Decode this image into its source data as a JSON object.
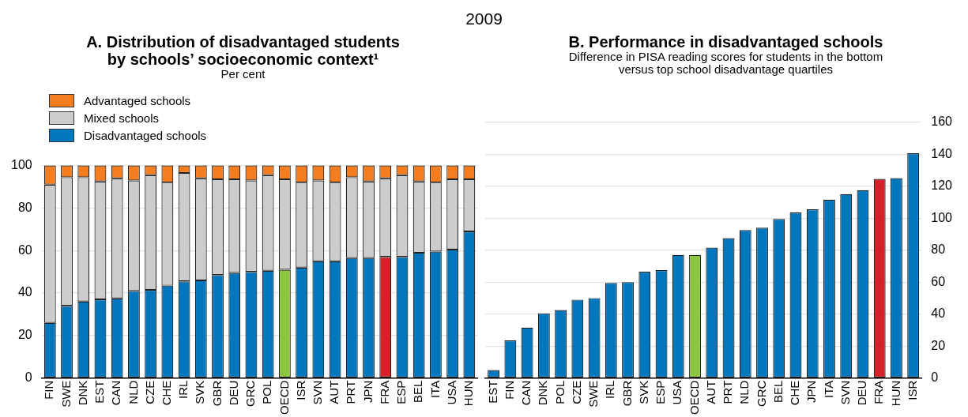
{
  "chart_data": [
    {
      "type": "bar",
      "title": "A. Distribution of disadvantaged students\nby schools’ socioeconomic context¹",
      "subtitle": "Per cent",
      "annotations": [
        "2009"
      ],
      "categories": [
        "FIN",
        "SWE",
        "DNK",
        "EST",
        "CAN",
        "NLD",
        "CZE",
        "CHE",
        "IRL",
        "SVK",
        "GBR",
        "DEU",
        "GRC",
        "POL",
        "OECD",
        "ISR",
        "SVN",
        "AUT",
        "PRT",
        "JPN",
        "FRA",
        "ESP",
        "BEL",
        "ITA",
        "USA",
        "HUN"
      ],
      "stacked": true,
      "legend": "top left",
      "grid": "y",
      "ylim": [
        0,
        100
      ],
      "yticks": [
        0,
        20,
        40,
        60,
        80,
        100
      ],
      "series": [
        {
          "name": "Disadvantaged schools",
          "color": "#0077bd",
          "colors": [
            "#0077bd",
            "#0077bd",
            "#0077bd",
            "#0077bd",
            "#0077bd",
            "#0077bd",
            "#0077bd",
            "#0077bd",
            "#0077bd",
            "#0077bd",
            "#0077bd",
            "#0077bd",
            "#0077bd",
            "#0077bd",
            "#8cc641",
            "#0077bd",
            "#0077bd",
            "#0077bd",
            "#0077bd",
            "#0077bd",
            "#d6202a",
            "#0077bd",
            "#0077bd",
            "#0077bd",
            "#0077bd",
            "#0077bd"
          ],
          "values": [
            26,
            34,
            36,
            37,
            37.5,
            41,
            41.5,
            43.5,
            45.5,
            46,
            48.5,
            49.5,
            50,
            50.5,
            51,
            52,
            55,
            55,
            56.5,
            56.5,
            57,
            57,
            59,
            59.5,
            60.5,
            69
          ]
        },
        {
          "name": "Mixed schools",
          "color": "#cccccc",
          "values": [
            65,
            60.5,
            58.5,
            55.5,
            56.5,
            52,
            54,
            48.5,
            51,
            48,
            45,
            44,
            43,
            45,
            42.5,
            40,
            38,
            37,
            38,
            36,
            37,
            38.5,
            33.5,
            32.5,
            33,
            24.5
          ]
        },
        {
          "name": "Advantaged schools",
          "color": "#f47d20",
          "values": [
            9,
            5.5,
            5.5,
            7.5,
            6,
            7,
            4.5,
            8,
            3.5,
            6,
            6.5,
            6.5,
            7,
            4.5,
            6.5,
            8,
            7,
            8,
            5.5,
            7.5,
            6,
            4.5,
            7.5,
            8,
            6.5,
            6.5
          ]
        }
      ]
    },
    {
      "type": "bar",
      "title": "B. Performance in disadvantaged schools",
      "subtitle": "Difference in PISA reading scores for students in the bottom\nversus top school disadvantage quartiles",
      "categories": [
        "EST",
        "FIN",
        "CAN",
        "DNK",
        "POL",
        "CZE",
        "SWE",
        "IRL",
        "GBR",
        "SVK",
        "ESP",
        "USA",
        "OECD",
        "AUT",
        "PRT",
        "NLD",
        "GRC",
        "BEL",
        "CHE",
        "JPN",
        "ITA",
        "SVN",
        "DEU",
        "FRA",
        "HUN",
        "ISR"
      ],
      "grid": "y",
      "y2lim": [
        0,
        160
      ],
      "y2ticks": [
        0,
        20,
        40,
        60,
        80,
        100,
        120,
        140,
        160
      ],
      "series": [
        {
          "axis": "y2",
          "colors": [
            "#0077bd",
            "#0077bd",
            "#0077bd",
            "#0077bd",
            "#0077bd",
            "#0077bd",
            "#0077bd",
            "#0077bd",
            "#0077bd",
            "#0077bd",
            "#0077bd",
            "#0077bd",
            "#8cc641",
            "#0077bd",
            "#0077bd",
            "#0077bd",
            "#0077bd",
            "#0077bd",
            "#0077bd",
            "#0077bd",
            "#0077bd",
            "#0077bd",
            "#0077bd",
            "#d6202a",
            "#0077bd",
            "#0077bd"
          ],
          "values": [
            5,
            23.5,
            31.5,
            40.5,
            42.5,
            49,
            50,
            59.5,
            60,
            66.5,
            67.5,
            77,
            77,
            81.5,
            87.5,
            92.5,
            94,
            99.5,
            103.5,
            105.5,
            111.5,
            115,
            117.5,
            124.5,
            125,
            140.5
          ]
        }
      ]
    }
  ]
}
